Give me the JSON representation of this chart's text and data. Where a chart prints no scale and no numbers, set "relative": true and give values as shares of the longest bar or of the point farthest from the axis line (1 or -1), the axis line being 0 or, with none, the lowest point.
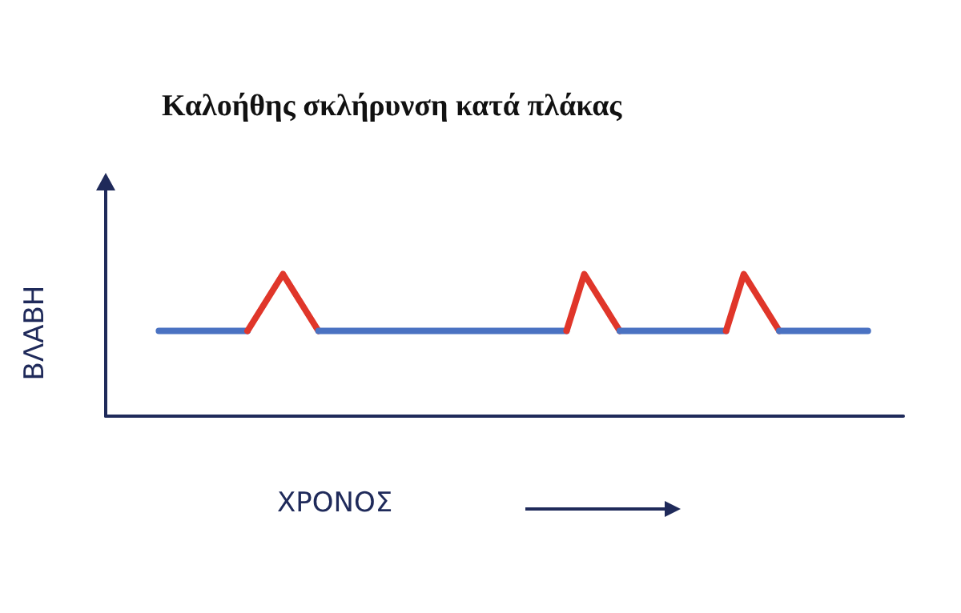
{
  "chart_data": {
    "type": "line",
    "title": "Καλοήθης σκλήρυνση κατά πλάκας",
    "xlabel": "ΧΡΟΝΟΣ",
    "ylabel": "ΒΛΑΒΗ",
    "relative": true,
    "grid": false,
    "marker": "none",
    "line_style": "solid",
    "categories": [
      null,
      null,
      null,
      null,
      null,
      null,
      null,
      null,
      null,
      null,
      null,
      null,
      null,
      null,
      null,
      null,
      null,
      null,
      null,
      null,
      null,
      null,
      null,
      null,
      null,
      null,
      null,
      null,
      null,
      null,
      null,
      null,
      null,
      null,
      null,
      null,
      null,
      null,
      null,
      null,
      null,
      null,
      null,
      null,
      null,
      null
    ],
    "series": [
      {
        "color": "#4a72c2",
        "values": [
          null,
          null,
          null,
          0.6,
          0.6,
          0.6,
          0.6,
          0.6,
          0.6,
          null,
          null,
          null,
          null,
          null,
          null,
          null,
          null,
          null,
          null,
          null,
          null,
          null,
          null,
          null,
          null,
          null,
          null,
          null,
          null,
          null,
          null,
          null,
          null,
          null,
          null,
          null,
          null,
          null,
          null,
          null,
          null,
          null,
          null,
          null,
          null,
          null
        ]
      },
      {
        "color": "#e0362a",
        "values": [
          null,
          null,
          null,
          null,
          null,
          null,
          null,
          null,
          0.6,
          0.8,
          1,
          0.8,
          0.6,
          null,
          null,
          null,
          null,
          null,
          null,
          null,
          null,
          null,
          null,
          null,
          null,
          null,
          null,
          null,
          null,
          null,
          null,
          null,
          null,
          null,
          null,
          null,
          null,
          null,
          null,
          null,
          null,
          null,
          null,
          null,
          null,
          null
        ]
      },
      {
        "color": "#4a72c2",
        "values": [
          null,
          null,
          null,
          null,
          null,
          null,
          null,
          null,
          null,
          null,
          null,
          null,
          0.6,
          0.6,
          0.6,
          0.6,
          0.6,
          0.6,
          0.6,
          0.6,
          0.6,
          0.6,
          0.6,
          0.6,
          0.6,
          0.6,
          0.6,
          null,
          null,
          null,
          null,
          null,
          null,
          null,
          null,
          null,
          null,
          null,
          null,
          null,
          null,
          null,
          null,
          null,
          null,
          null
        ]
      },
      {
        "color": "#e0362a",
        "values": [
          null,
          null,
          null,
          null,
          null,
          null,
          null,
          null,
          null,
          null,
          null,
          null,
          null,
          null,
          null,
          null,
          null,
          null,
          null,
          null,
          null,
          null,
          null,
          null,
          null,
          null,
          0.6,
          1,
          0.8,
          0.6,
          null,
          null,
          null,
          null,
          null,
          null,
          null,
          null,
          null,
          null,
          null,
          null,
          null,
          null,
          null,
          null
        ]
      },
      {
        "color": "#4a72c2",
        "values": [
          null,
          null,
          null,
          null,
          null,
          null,
          null,
          null,
          null,
          null,
          null,
          null,
          null,
          null,
          null,
          null,
          null,
          null,
          null,
          null,
          null,
          null,
          null,
          null,
          null,
          null,
          null,
          null,
          null,
          0.6,
          0.6,
          0.6,
          0.6,
          0.6,
          0.6,
          0.6,
          null,
          null,
          null,
          null,
          null,
          null,
          null,
          null,
          null,
          null
        ]
      },
      {
        "color": "#e0362a",
        "values": [
          null,
          null,
          null,
          null,
          null,
          null,
          null,
          null,
          null,
          null,
          null,
          null,
          null,
          null,
          null,
          null,
          null,
          null,
          null,
          null,
          null,
          null,
          null,
          null,
          null,
          null,
          null,
          null,
          null,
          null,
          null,
          null,
          null,
          null,
          null,
          0.6,
          1,
          0.8,
          0.6,
          null,
          null,
          null,
          null,
          null,
          null,
          null
        ]
      },
      {
        "color": "#4a72c2",
        "values": [
          null,
          null,
          null,
          null,
          null,
          null,
          null,
          null,
          null,
          null,
          null,
          null,
          null,
          null,
          null,
          null,
          null,
          null,
          null,
          null,
          null,
          null,
          null,
          null,
          null,
          null,
          null,
          null,
          null,
          null,
          null,
          null,
          null,
          null,
          null,
          null,
          null,
          null,
          0.6,
          0.6,
          0.6,
          0.6,
          0.6,
          0.6,
          null,
          null
        ]
      }
    ]
  }
}
